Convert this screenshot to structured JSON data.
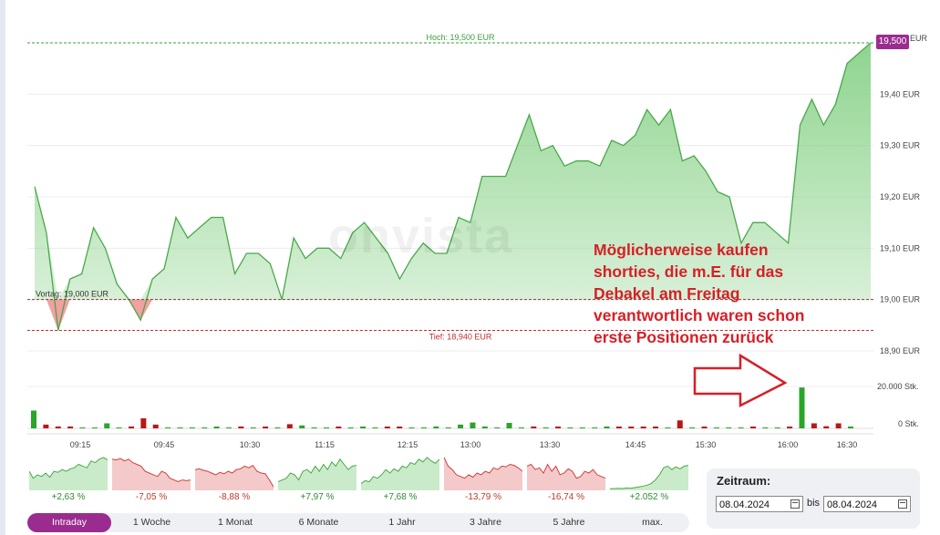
{
  "chart_data": {
    "type": "area",
    "title": "",
    "y_axis": {
      "ticks": [
        "19,40 EUR",
        "19,30 EUR",
        "19,20 EUR",
        "19,10 EUR",
        "19,00 EUR",
        "18,90 EUR"
      ],
      "tick_values": [
        19.4,
        19.3,
        19.2,
        19.1,
        19.0,
        18.9
      ],
      "top_label": "EUR",
      "range": [
        18.87,
        19.51
      ]
    },
    "x_axis": {
      "ticks": [
        "09:15",
        "09:45",
        "10:30",
        "11:15",
        "12:15",
        "13:00",
        "13:30",
        "14:45",
        "15:30",
        "16:00",
        "16:30"
      ]
    },
    "reference_lines": {
      "high": {
        "label": "Hoch: 19,500 EUR",
        "value": 19.5
      },
      "previous_close": {
        "label": "Vortag: 19,000 EUR",
        "value": 19.0
      },
      "low": {
        "label": "Tief: 18,940 EUR",
        "value": 18.94
      }
    },
    "last_value": "19,500",
    "series": [
      {
        "values": [
          19.22,
          19.13,
          18.94,
          19.04,
          19.05,
          19.14,
          19.1,
          19.03,
          19.0,
          18.96,
          19.04,
          19.06,
          19.16,
          19.12,
          19.14,
          19.16,
          19.16,
          19.05,
          19.09,
          19.09,
          19.07,
          19.0,
          19.12,
          19.08,
          19.1,
          19.1,
          19.08,
          19.13,
          19.15,
          19.12,
          19.09,
          19.04,
          19.08,
          19.11,
          19.09,
          19.09,
          19.16,
          19.15,
          19.24,
          19.24,
          19.24,
          19.3,
          19.36,
          19.29,
          19.3,
          19.26,
          19.27,
          19.27,
          19.26,
          19.31,
          19.3,
          19.32,
          19.37,
          19.34,
          19.37,
          19.27,
          19.28,
          19.25,
          19.21,
          19.2,
          19.11,
          19.15,
          19.15,
          19.13,
          19.11,
          19.34,
          19.39,
          19.34,
          19.38,
          19.46,
          19.48,
          19.5
        ]
      }
    ],
    "volume": {
      "tick_labels": [
        "20.000 Stk.",
        "0 Stk."
      ],
      "bars": [
        {
          "v": 8500,
          "up": true
        },
        {
          "v": 1800,
          "up": false
        },
        {
          "v": 900,
          "up": false
        },
        {
          "v": 900,
          "up": false
        },
        {
          "v": 0,
          "up": true
        },
        {
          "v": 0,
          "up": true
        },
        {
          "v": 2400,
          "up": true
        },
        {
          "v": 0,
          "up": true
        },
        {
          "v": 900,
          "up": false
        },
        {
          "v": 4800,
          "up": false
        },
        {
          "v": 1800,
          "up": false
        },
        {
          "v": 0,
          "up": true
        },
        {
          "v": 0,
          "up": true
        },
        {
          "v": 0,
          "up": true
        },
        {
          "v": 0,
          "up": true
        },
        {
          "v": 700,
          "up": true
        },
        {
          "v": 0,
          "up": true
        },
        {
          "v": 900,
          "up": false
        },
        {
          "v": 0,
          "up": true
        },
        {
          "v": 600,
          "up": false
        },
        {
          "v": 0,
          "up": true
        },
        {
          "v": 2000,
          "up": false
        },
        {
          "v": 1400,
          "up": true
        },
        {
          "v": 0,
          "up": true
        },
        {
          "v": 0,
          "up": true
        },
        {
          "v": 600,
          "up": false
        },
        {
          "v": 0,
          "up": true
        },
        {
          "v": 700,
          "up": true
        },
        {
          "v": 0,
          "up": true
        },
        {
          "v": 600,
          "up": false
        },
        {
          "v": 600,
          "up": false
        },
        {
          "v": 0,
          "up": true
        },
        {
          "v": 0,
          "up": true
        },
        {
          "v": 900,
          "up": true
        },
        {
          "v": 0,
          "up": true
        },
        {
          "v": 1800,
          "up": true
        },
        {
          "v": 2800,
          "up": true
        },
        {
          "v": 900,
          "up": true
        },
        {
          "v": 0,
          "up": true
        },
        {
          "v": 2600,
          "up": true
        },
        {
          "v": 0,
          "up": true
        },
        {
          "v": 900,
          "up": false
        },
        {
          "v": 0,
          "up": true
        },
        {
          "v": 600,
          "up": false
        },
        {
          "v": 0,
          "up": true
        },
        {
          "v": 0,
          "up": true
        },
        {
          "v": 0,
          "up": true
        },
        {
          "v": 900,
          "up": true
        },
        {
          "v": 600,
          "up": false
        },
        {
          "v": 600,
          "up": false
        },
        {
          "v": 600,
          "up": false
        },
        {
          "v": 600,
          "up": false
        },
        {
          "v": 0,
          "up": true
        },
        {
          "v": 3800,
          "up": false
        },
        {
          "v": 0,
          "up": true
        },
        {
          "v": 600,
          "up": false
        },
        {
          "v": 0,
          "up": true
        },
        {
          "v": 0,
          "up": true
        },
        {
          "v": 0,
          "up": true
        },
        {
          "v": 600,
          "up": false
        },
        {
          "v": 0,
          "up": true
        },
        {
          "v": 0,
          "up": true
        },
        {
          "v": 600,
          "up": false
        },
        {
          "v": 19500,
          "up": true
        },
        {
          "v": 2400,
          "up": false
        },
        {
          "v": 1000,
          "up": false
        },
        {
          "v": 2400,
          "up": false
        },
        {
          "v": 700,
          "up": true
        }
      ]
    },
    "watermark": "onvista"
  },
  "annotation": {
    "lines": [
      "Möglicherweise kaufen",
      "shorties, die m.E. für das",
      "Debakel am Freitag",
      "verantwortlich waren schon",
      "erste Positionen zurück"
    ]
  },
  "period_thumbnails": [
    {
      "pct": "+2,63 %",
      "positive": true,
      "values": [
        0.55,
        0.35,
        0.45,
        0.4,
        0.5,
        0.38,
        0.55,
        0.52,
        0.6,
        0.55,
        0.62,
        0.66,
        0.75,
        0.7,
        0.65,
        0.85,
        0.8,
        0.9,
        0.95,
        0.88
      ]
    },
    {
      "pct": "-7,05 %",
      "positive": false,
      "values": [
        0.9,
        0.88,
        0.92,
        0.85,
        0.9,
        0.8,
        0.75,
        0.7,
        0.55,
        0.5,
        0.45,
        0.4,
        0.55,
        0.5,
        0.35,
        0.3,
        0.25,
        0.3,
        0.28,
        0.3
      ]
    },
    {
      "pct": "-8,88 %",
      "positive": false,
      "values": [
        0.6,
        0.62,
        0.58,
        0.55,
        0.5,
        0.45,
        0.52,
        0.48,
        0.55,
        0.5,
        0.6,
        0.62,
        0.7,
        0.65,
        0.72,
        0.55,
        0.5,
        0.48,
        0.3,
        0.1
      ]
    },
    {
      "pct": "+7,97 %",
      "positive": true,
      "values": [
        0.25,
        0.3,
        0.35,
        0.5,
        0.45,
        0.3,
        0.55,
        0.6,
        0.5,
        0.7,
        0.55,
        0.75,
        0.6,
        0.82,
        0.7,
        0.9,
        0.75,
        0.6,
        0.7,
        0.72
      ]
    },
    {
      "pct": "+7,68 %",
      "positive": true,
      "values": [
        0.2,
        0.28,
        0.25,
        0.4,
        0.35,
        0.45,
        0.6,
        0.5,
        0.62,
        0.55,
        0.7,
        0.65,
        0.8,
        0.75,
        0.9,
        0.82,
        0.95,
        0.85,
        0.78,
        0.9
      ]
    },
    {
      "pct": "-13,79 %",
      "positive": false,
      "values": [
        0.95,
        0.7,
        0.6,
        0.45,
        0.4,
        0.35,
        0.45,
        0.38,
        0.5,
        0.45,
        0.55,
        0.5,
        0.65,
        0.6,
        0.7,
        0.68,
        0.75,
        0.72,
        0.65,
        0.55
      ]
    },
    {
      "pct": "-16,74 %",
      "positive": false,
      "values": [
        0.7,
        0.75,
        0.6,
        0.65,
        0.5,
        0.75,
        0.55,
        0.7,
        0.45,
        0.5,
        0.62,
        0.55,
        0.35,
        0.4,
        0.55,
        0.5,
        0.6,
        0.45,
        0.4,
        0.35
      ]
    },
    {
      "pct": "+2.052 %",
      "positive": true,
      "values": [
        0.05,
        0.05,
        0.06,
        0.05,
        0.07,
        0.06,
        0.08,
        0.1,
        0.12,
        0.15,
        0.2,
        0.3,
        0.45,
        0.65,
        0.7,
        0.6,
        0.68,
        0.62,
        0.7,
        0.72
      ]
    }
  ],
  "ranges": [
    {
      "label": "Intraday",
      "active": true
    },
    {
      "label": "1 Woche",
      "active": false
    },
    {
      "label": "1 Monat",
      "active": false
    },
    {
      "label": "6 Monate",
      "active": false
    },
    {
      "label": "1 Jahr",
      "active": false
    },
    {
      "label": "3 Jahre",
      "active": false
    },
    {
      "label": "5 Jahre",
      "active": false
    },
    {
      "label": "max.",
      "active": false
    }
  ],
  "zeitraum": {
    "title": "Zeitraum:",
    "from": "08.04.2024",
    "separator": "bis",
    "to": "08.04.2024"
  },
  "colors": {
    "up_line": "#4aa84a",
    "up_fill": "#8fd48f",
    "down_fill": "#f2a0a0",
    "down_line": "#d04040",
    "vol_up": "#2aa52a",
    "vol_down": "#b81818",
    "high_line": "#3aa03a",
    "low_line": "#c03030",
    "accent": "#9b2c8f"
  }
}
